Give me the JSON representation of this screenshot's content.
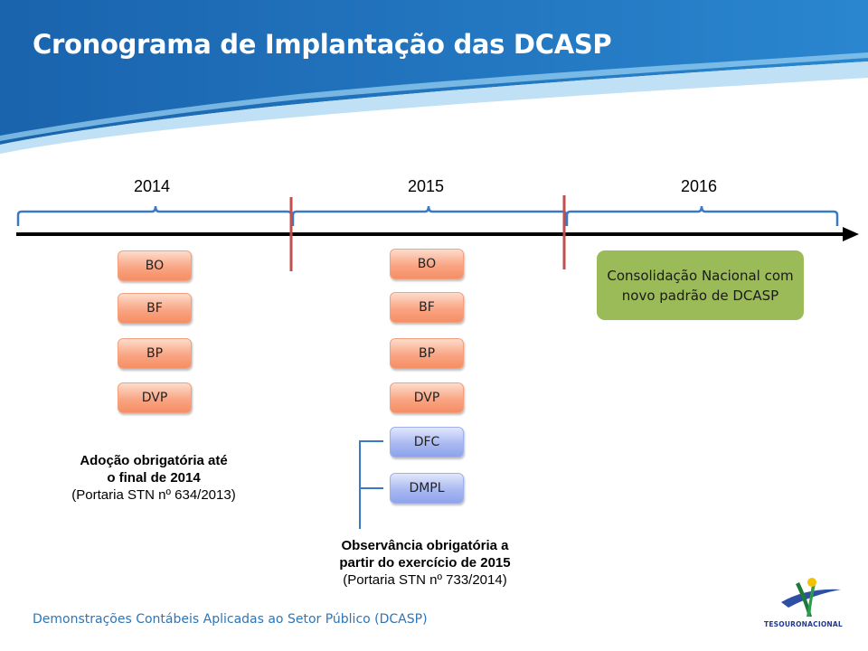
{
  "header": {
    "title": "Cronograma de Implantação das DCASP"
  },
  "timeline": {
    "years": [
      "2014",
      "2015",
      "2016"
    ]
  },
  "column_2014": {
    "boxes": [
      "BO",
      "BF",
      "BP",
      "DVP"
    ],
    "note": {
      "line1": "Adoção obrigatória até",
      "line2": "o final de 2014",
      "line3": "(Portaria STN nº 634/2013)"
    }
  },
  "column_2015": {
    "boxes": [
      "BO",
      "BF",
      "BP",
      "DVP"
    ],
    "extra_boxes": [
      "DFC",
      "DMPL"
    ],
    "note": {
      "line1": "Observância obrigatória a",
      "line2": "partir do exercício de 2015",
      "line3": "(Portaria STN nº 733/2014)"
    }
  },
  "column_2016": {
    "box": "Consolidação Nacional com novo padrão de DCASP"
  },
  "footer": {
    "text": "Demonstrações Contábeis Aplicadas ao Setor Público (DCASP)"
  },
  "logo": {
    "text": "TESOURONACIONAL"
  },
  "colors": {
    "header_blue": "#1f6db5",
    "consolidation_green": "#9bbb59",
    "brace_blue": "#3a79c4",
    "divider_red": "#c0504d"
  }
}
